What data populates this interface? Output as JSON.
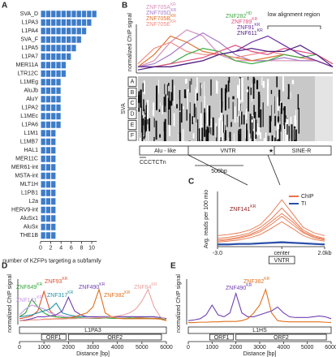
{
  "chart_data": [
    {
      "type": "bar",
      "panel": "A",
      "xlabel": "number of KZFPs targeting a subfamily",
      "categories": [
        "SVA_D",
        "L1PA3",
        "L1PA4",
        "SVA_F",
        "L1PA5",
        "L1PA7",
        "MER11A",
        "LTR12C",
        "L1MEg",
        "AluJb",
        "AluY",
        "L1PA2",
        "L1MEc",
        "L1PA6",
        "L1M1",
        "L1MB7",
        "HAL1",
        "MER11C",
        "MER61-int",
        "MSTA-int",
        "MLT1H",
        "L1PB1",
        "L2a",
        "HERV9-int",
        "AluSx1",
        "AluSx",
        "THE1B"
      ],
      "values": [
        11,
        10,
        9,
        8,
        7,
        6,
        5,
        5,
        4,
        4,
        4,
        4,
        4,
        4,
        3,
        3,
        3,
        3,
        3,
        3,
        3,
        3,
        3,
        3,
        3,
        3,
        3
      ],
      "color": "#3d7cc9",
      "xlim": [
        0,
        11
      ],
      "xticks": [
        0,
        2,
        4,
        6,
        8,
        10
      ]
    },
    {
      "type": "line",
      "panel": "B",
      "ylabel": "normalized ChIP signal",
      "ylim": [
        0,
        1
      ],
      "annotation": "low alignment region",
      "msa_label": "SVA",
      "msa_rows": [
        "A",
        "B",
        "C",
        "D",
        "E",
        "F"
      ],
      "segments": [
        "Alu - like",
        "VNTR",
        "SINE-R"
      ],
      "motif": "CCCTCTn",
      "scale_bar": "500bp",
      "series": [
        {
          "name": "ZNF705A",
          "tag": "KR",
          "color": "#d690b8",
          "values": [
            0.1,
            0.2,
            0.5,
            0.7,
            0.6,
            0.3,
            0.2,
            0.2,
            0.2,
            0.2,
            0.2,
            0.2,
            0.1
          ]
        },
        {
          "name": "ZNF705D",
          "tag": "KR",
          "color": "#a77bc9",
          "values": [
            0.1,
            0.15,
            0.3,
            0.5,
            0.65,
            0.5,
            0.3,
            0.2,
            0.2,
            0.25,
            0.2,
            0.2,
            0.1
          ]
        },
        {
          "name": "ZNF705B",
          "tag": "KR",
          "color": "#e0742f",
          "values": [
            0.1,
            0.3,
            0.6,
            0.5,
            0.35,
            0.3,
            0.25,
            0.2,
            0.25,
            0.3,
            0.25,
            0.2,
            0.1
          ]
        },
        {
          "name": "ZNF705E",
          "tag": "KR",
          "color": "#f08b84",
          "values": [
            0.15,
            0.4,
            0.5,
            0.35,
            0.3,
            0.3,
            0.25,
            0.3,
            0.35,
            0.3,
            0.25,
            0.2,
            0.1
          ]
        },
        {
          "name": "ZNF282",
          "tag": "HD",
          "color": "#3eaa44",
          "values": [
            0.1,
            0.1,
            0.15,
            0.3,
            0.4,
            0.35,
            0.2,
            0.15,
            0.2,
            0.3,
            0.25,
            0.3,
            0.15
          ]
        },
        {
          "name": "ZNF789",
          "tag": "KR",
          "color": "#e0507e",
          "values": [
            0.1,
            0.1,
            0.15,
            0.2,
            0.25,
            0.35,
            0.45,
            0.35,
            0.3,
            0.4,
            0.35,
            0.3,
            0.15
          ]
        },
        {
          "name": "ZNF91",
          "tag": "KR",
          "color": "#6a2ea0",
          "values": [
            0.1,
            0.1,
            0.1,
            0.15,
            0.2,
            0.3,
            0.35,
            0.5,
            0.6,
            0.45,
            0.3,
            0.2,
            0.1
          ]
        },
        {
          "name": "ZNF611",
          "tag": "KR",
          "color": "#4e1f80",
          "values": [
            0.05,
            0.1,
            0.1,
            0.15,
            0.2,
            0.3,
            0.35,
            0.4,
            0.35,
            0.35,
            0.45,
            0.3,
            0.1
          ]
        }
      ]
    },
    {
      "type": "line",
      "panel": "C",
      "ylabel": "Avg. reads per 100 mio",
      "ylim": [
        0,
        1
      ],
      "xlim": [
        -3,
        2
      ],
      "xticks": [
        {
          "value": -3,
          "label": "-3.0"
        },
        {
          "value": 0,
          "label": "center"
        },
        {
          "value": 2,
          "label": "2.0kb"
        }
      ],
      "highlight": {
        "name": "ZNF141",
        "tag": "KR"
      },
      "feature": "VNTR",
      "x": [
        -3,
        -2.5,
        -2,
        -1.5,
        -1,
        -0.5,
        0,
        0.5,
        1,
        1.5,
        2
      ],
      "series": [
        {
          "name": "ChIP",
          "color": "#e8734a",
          "values": [
            [
              0.2,
              0.22,
              0.25,
              0.3,
              0.4,
              0.6,
              0.85,
              0.6,
              0.35,
              0.25,
              0.2
            ],
            [
              0.15,
              0.17,
              0.2,
              0.25,
              0.35,
              0.5,
              0.7,
              0.5,
              0.3,
              0.2,
              0.15
            ],
            [
              0.12,
              0.14,
              0.17,
              0.22,
              0.3,
              0.45,
              0.6,
              0.45,
              0.27,
              0.18,
              0.13
            ],
            [
              0.1,
              0.12,
              0.15,
              0.2,
              0.27,
              0.4,
              0.55,
              0.4,
              0.25,
              0.16,
              0.12
            ],
            [
              0.08,
              0.1,
              0.12,
              0.16,
              0.22,
              0.33,
              0.45,
              0.33,
              0.2,
              0.13,
              0.1
            ]
          ]
        },
        {
          "name": "TI",
          "color": "#2a4fa8",
          "values": [
            [
              0.05,
              0.05,
              0.06,
              0.06,
              0.07,
              0.08,
              0.09,
              0.08,
              0.07,
              0.06,
              0.05
            ],
            [
              0.04,
              0.04,
              0.05,
              0.05,
              0.06,
              0.07,
              0.08,
              0.07,
              0.06,
              0.05,
              0.04
            ],
            [
              0.03,
              0.03,
              0.04,
              0.04,
              0.05,
              0.06,
              0.07,
              0.06,
              0.05,
              0.04,
              0.03
            ]
          ]
        }
      ]
    },
    {
      "type": "line",
      "panel": "D",
      "ylabel": "normalized ChIP signal",
      "xlabel": "Distance [bp]",
      "ylim": [
        0,
        1
      ],
      "xlim": [
        0,
        6000
      ],
      "xticks": [
        0,
        1000,
        2000,
        3000,
        4000,
        5000,
        6000
      ],
      "element": "L1PA3",
      "orfs": [
        "ORF1",
        "ORF2"
      ],
      "x": [
        0,
        250,
        500,
        750,
        1000,
        1250,
        1500,
        1750,
        2000,
        2250,
        2500,
        2750,
        3000,
        3250,
        3500,
        3750,
        4000,
        4250,
        4500,
        4750,
        5000,
        5250,
        5500,
        5750,
        6000
      ],
      "series": [
        {
          "name": "ZNF93",
          "tag": "KR",
          "color": "#e0502e",
          "values": [
            0.15,
            0.18,
            0.22,
            0.35,
            0.85,
            0.35,
            0.2,
            0.18,
            0.17,
            0.17,
            0.16,
            0.16,
            0.16,
            0.16,
            0.17,
            0.17,
            0.16,
            0.16,
            0.16,
            0.17,
            0.17,
            0.16,
            0.16,
            0.15,
            0.12
          ]
        },
        {
          "name": "ZNF649",
          "tag": "KR",
          "color": "#33a33a",
          "values": [
            0.2,
            0.3,
            0.65,
            0.45,
            0.3,
            0.22,
            0.2,
            0.18,
            0.17,
            0.17,
            0.17,
            0.16,
            0.16,
            0.17,
            0.17,
            0.16,
            0.16,
            0.16,
            0.17,
            0.16,
            0.16,
            0.16,
            0.15,
            0.15,
            0.12
          ]
        },
        {
          "name": "ZNF141",
          "tag": "KR",
          "color": "#c796e6",
          "values": [
            0.25,
            0.4,
            0.5,
            0.45,
            0.4,
            0.3,
            0.25,
            0.22,
            0.2,
            0.2,
            0.2,
            0.2,
            0.2,
            0.2,
            0.2,
            0.2,
            0.2,
            0.2,
            0.2,
            0.2,
            0.2,
            0.2,
            0.2,
            0.18,
            0.15
          ]
        },
        {
          "name": "ZNF317",
          "tag": "KR",
          "color": "#2390a3",
          "values": [
            0.2,
            0.22,
            0.25,
            0.3,
            0.35,
            0.4,
            0.55,
            0.3,
            0.25,
            0.22,
            0.2,
            0.2,
            0.2,
            0.2,
            0.2,
            0.2,
            0.2,
            0.2,
            0.2,
            0.2,
            0.2,
            0.2,
            0.2,
            0.18,
            0.15
          ]
        },
        {
          "name": "ZNF490",
          "tag": "KR",
          "color": "#7040b0",
          "values": [
            0.1,
            0.12,
            0.15,
            0.2,
            0.2,
            0.22,
            0.25,
            0.35,
            0.7,
            0.35,
            0.25,
            0.2,
            0.2,
            0.2,
            0.2,
            0.2,
            0.2,
            0.2,
            0.2,
            0.2,
            0.2,
            0.2,
            0.2,
            0.18,
            0.15
          ]
        },
        {
          "name": "ZNF382",
          "tag": "KR",
          "color": "#e0701e",
          "values": [
            0.1,
            0.1,
            0.12,
            0.12,
            0.14,
            0.14,
            0.15,
            0.15,
            0.16,
            0.2,
            0.25,
            0.3,
            0.45,
            0.9,
            0.3,
            0.2,
            0.16,
            0.15,
            0.15,
            0.15,
            0.15,
            0.15,
            0.15,
            0.14,
            0.1
          ]
        },
        {
          "name": "ZNF84",
          "tag": "KR",
          "color": "#e8a3a0",
          "values": [
            0.1,
            0.1,
            0.12,
            0.12,
            0.13,
            0.13,
            0.14,
            0.14,
            0.15,
            0.15,
            0.16,
            0.16,
            0.17,
            0.18,
            0.18,
            0.2,
            0.22,
            0.25,
            0.3,
            0.4,
            0.6,
            0.9,
            0.45,
            0.2,
            0.12
          ]
        }
      ]
    },
    {
      "type": "line",
      "panel": "E",
      "ylabel": "normalized ChIP signal",
      "xlabel": "Distance [bp]",
      "ylim": [
        0,
        1
      ],
      "xlim": [
        0,
        6000
      ],
      "xticks": [
        0,
        1000,
        2000,
        3000,
        4000,
        5000,
        6000
      ],
      "element": "L1HS",
      "orfs": [
        "ORF1",
        "ORF2"
      ],
      "x": [
        0,
        250,
        500,
        750,
        1000,
        1250,
        1500,
        1750,
        2000,
        2250,
        2500,
        2750,
        3000,
        3250,
        3500,
        3750,
        4000,
        4250,
        4500,
        4750,
        5000,
        5250,
        5500,
        5750,
        6000
      ],
      "series": [
        {
          "name": "ZNF490",
          "tag": "KR",
          "color": "#7040b0",
          "values": [
            0.1,
            0.12,
            0.15,
            0.25,
            0.5,
            0.25,
            0.2,
            0.3,
            0.8,
            0.3,
            0.2,
            0.2,
            0.25,
            0.3,
            0.35,
            0.45,
            0.3,
            0.2,
            0.18,
            0.18,
            0.18,
            0.2,
            0.22,
            0.2,
            0.15
          ]
        },
        {
          "name": "ZNF382",
          "tag": "KR",
          "color": "#e0701e",
          "values": [
            0.05,
            0.05,
            0.06,
            0.06,
            0.07,
            0.07,
            0.08,
            0.08,
            0.08,
            0.1,
            0.15,
            0.3,
            0.5,
            0.9,
            0.3,
            0.1,
            0.08,
            0.07,
            0.07,
            0.07,
            0.07,
            0.07,
            0.07,
            0.06,
            0.05
          ]
        }
      ]
    }
  ]
}
